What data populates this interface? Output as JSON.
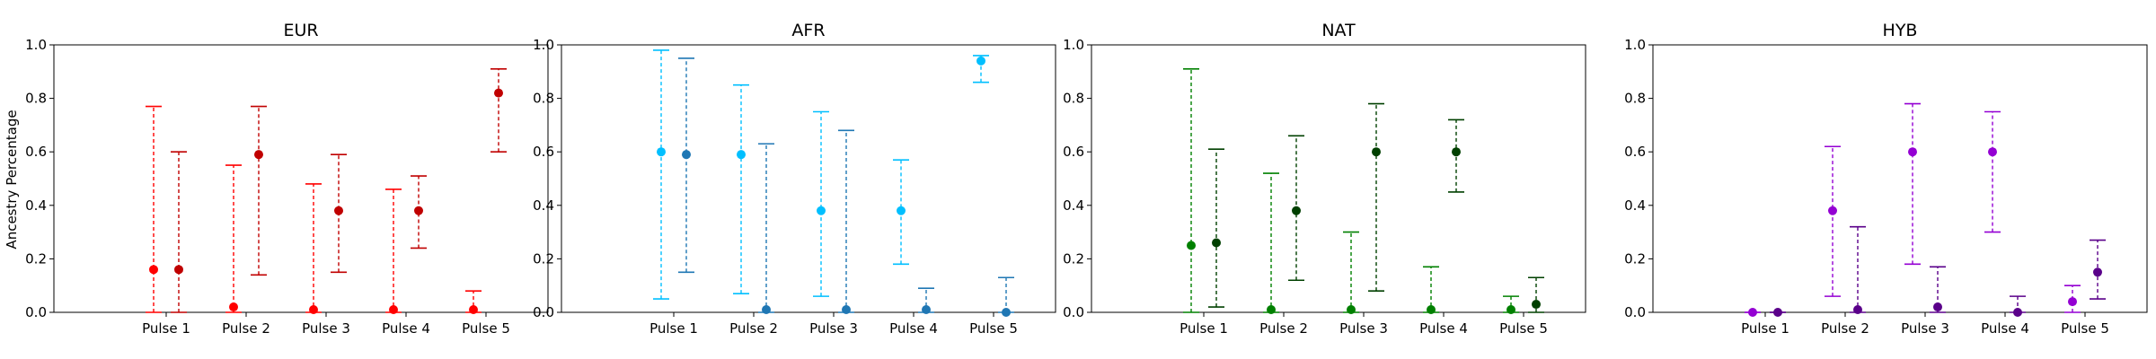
{
  "chart_data": {
    "type": "errorbar",
    "ylabel": "Ancestry Percentage",
    "categories": [
      "Pulse 1",
      "Pulse 2",
      "Pulse 3",
      "Pulse 4",
      "Pulse 5"
    ],
    "ylim": [
      0,
      1
    ],
    "yticks": [
      "0.0",
      "0.2",
      "0.4",
      "0.6",
      "0.8",
      "1.0"
    ],
    "grid": false,
    "legend": "none",
    "panels": [
      {
        "title": "EUR",
        "series": [
          {
            "color": "#ff0000",
            "points": [
              {
                "y": 0.16,
                "low": 0.0,
                "high": 0.77
              },
              {
                "y": 0.02,
                "low": 0.0,
                "high": 0.55
              },
              {
                "y": 0.01,
                "low": 0.0,
                "high": 0.48
              },
              {
                "y": 0.01,
                "low": 0.0,
                "high": 0.46
              },
              {
                "y": 0.01,
                "low": 0.0,
                "high": 0.08
              }
            ]
          },
          {
            "color": "#c00000",
            "points": [
              {
                "y": 0.16,
                "low": 0.0,
                "high": 0.6
              },
              {
                "y": 0.59,
                "low": 0.14,
                "high": 0.77
              },
              {
                "y": 0.38,
                "low": 0.15,
                "high": 0.59
              },
              {
                "y": 0.38,
                "low": 0.24,
                "high": 0.51
              },
              {
                "y": 0.82,
                "low": 0.6,
                "high": 0.91
              }
            ]
          }
        ]
      },
      {
        "title": "AFR",
        "series": [
          {
            "color": "#00bfff",
            "points": [
              {
                "y": 0.6,
                "low": 0.05,
                "high": 0.98
              },
              {
                "y": 0.59,
                "low": 0.07,
                "high": 0.85
              },
              {
                "y": 0.38,
                "low": 0.06,
                "high": 0.75
              },
              {
                "y": 0.38,
                "low": 0.18,
                "high": 0.57
              },
              {
                "y": 0.94,
                "low": 0.86,
                "high": 0.96
              }
            ]
          },
          {
            "color": "#1f77b4",
            "points": [
              {
                "y": 0.59,
                "low": 0.15,
                "high": 0.95
              },
              {
                "y": 0.01,
                "low": 0.0,
                "high": 0.63
              },
              {
                "y": 0.01,
                "low": 0.0,
                "high": 0.68
              },
              {
                "y": 0.01,
                "low": 0.0,
                "high": 0.09
              },
              {
                "y": 0.0,
                "low": 0.0,
                "high": 0.13
              }
            ]
          }
        ]
      },
      {
        "title": "NAT",
        "series": [
          {
            "color": "#008000",
            "points": [
              {
                "y": 0.25,
                "low": 0.0,
                "high": 0.91
              },
              {
                "y": 0.01,
                "low": 0.0,
                "high": 0.52
              },
              {
                "y": 0.01,
                "low": 0.0,
                "high": 0.3
              },
              {
                "y": 0.01,
                "low": 0.0,
                "high": 0.17
              },
              {
                "y": 0.01,
                "low": 0.0,
                "high": 0.06
              }
            ]
          },
          {
            "color": "#004000",
            "points": [
              {
                "y": 0.26,
                "low": 0.02,
                "high": 0.61
              },
              {
                "y": 0.38,
                "low": 0.12,
                "high": 0.66
              },
              {
                "y": 0.6,
                "low": 0.08,
                "high": 0.78
              },
              {
                "y": 0.6,
                "low": 0.45,
                "high": 0.72
              },
              {
                "y": 0.03,
                "low": 0.0,
                "high": 0.13
              }
            ]
          }
        ]
      },
      {
        "title": "HYB",
        "series": [
          {
            "color": "#9400d3",
            "points": [
              {
                "y": 0.0,
                "low": 0.0,
                "high": 0.0
              },
              {
                "y": 0.38,
                "low": 0.06,
                "high": 0.62
              },
              {
                "y": 0.6,
                "low": 0.18,
                "high": 0.78
              },
              {
                "y": 0.6,
                "low": 0.3,
                "high": 0.75
              },
              {
                "y": 0.04,
                "low": 0.0,
                "high": 0.1
              }
            ]
          },
          {
            "color": "#5a008a",
            "points": [
              {
                "y": 0.0,
                "low": 0.0,
                "high": 0.0
              },
              {
                "y": 0.01,
                "low": 0.0,
                "high": 0.32
              },
              {
                "y": 0.02,
                "low": 0.0,
                "high": 0.17
              },
              {
                "y": 0.0,
                "low": 0.0,
                "high": 0.06
              },
              {
                "y": 0.15,
                "low": 0.05,
                "high": 0.27
              }
            ]
          }
        ]
      }
    ]
  }
}
